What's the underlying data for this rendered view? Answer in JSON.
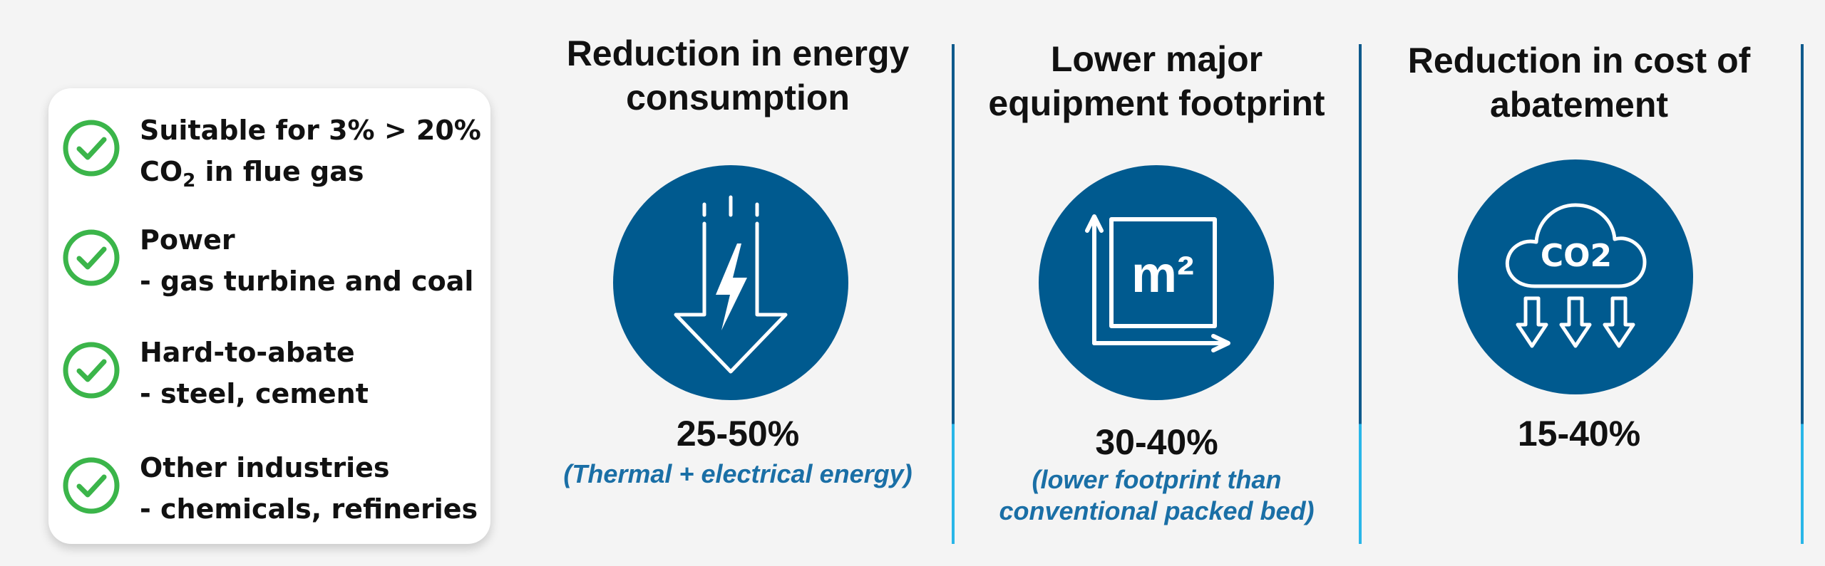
{
  "features": [
    {
      "line1": "Suitable for 3% > 20%",
      "line2_pre": "CO",
      "line2_sub": "2",
      "line2_post": " in flue gas"
    },
    {
      "line1": "Power",
      "line2": "- gas turbine and coal"
    },
    {
      "line1": "Hard-to-abate",
      "line2": "- steel, cement"
    },
    {
      "line1": "Other industries",
      "line2": "- chemicals, refineries"
    }
  ],
  "benefits": [
    {
      "title_line1": "Reduction in energy",
      "title_line2": "consumption",
      "icon": "energy-down-arrow-icon",
      "value": "25-50%",
      "note_line1": "(Thermal + electrical energy)",
      "note_line2": ""
    },
    {
      "title_line1": "Lower major",
      "title_line2": "equipment footprint",
      "icon": "square-meter-icon",
      "icon_text": "m²",
      "value": "30-40%",
      "note_line1": "(lower footprint than",
      "note_line2": "conventional packed bed)"
    },
    {
      "title_line1": "Reduction in cost of",
      "title_line2": "abatement",
      "icon": "co2-cloud-icon",
      "icon_text": "CO2",
      "value": "15-40%",
      "note_line1": "",
      "note_line2": ""
    }
  ],
  "colors": {
    "circle": "#005a8f",
    "check": "#3bb54a",
    "note": "#1a6fa6",
    "divider_dark": "#0f5a8c",
    "divider_light": "#29b6e8"
  }
}
